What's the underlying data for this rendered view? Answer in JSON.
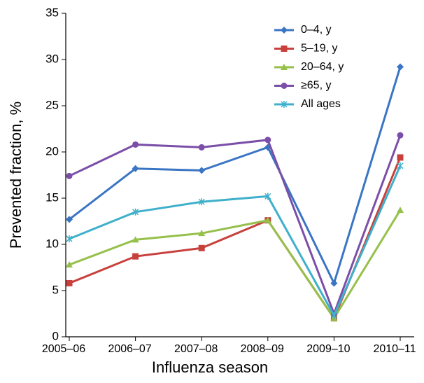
{
  "chart_data": {
    "type": "line",
    "x_label": "Influenza season",
    "y_label": "Prevented fraction, %",
    "categories": [
      "2005–06",
      "2006–07",
      "2007–08",
      "2008–09",
      "2009–10",
      "2010–11"
    ],
    "series": [
      {
        "name": "0–4, y",
        "color": "#3a75c4",
        "marker": "diamond",
        "values": [
          12.7,
          18.2,
          18.0,
          20.5,
          5.8,
          29.2
        ]
      },
      {
        "name": "5–19, y",
        "color": "#c8403c",
        "marker": "square",
        "values": [
          5.8,
          8.7,
          9.6,
          12.6,
          2.0,
          19.4
        ]
      },
      {
        "name": "20–64, y",
        "color": "#95c04a",
        "marker": "triangle",
        "values": [
          7.8,
          10.5,
          11.2,
          12.6,
          2.0,
          13.7
        ]
      },
      {
        "name": "≥65, y",
        "color": "#7b4fa8",
        "marker": "circle",
        "values": [
          17.4,
          20.8,
          20.5,
          21.3,
          2.5,
          21.8
        ]
      },
      {
        "name": "All ages",
        "color": "#3fb0cc",
        "marker": "star",
        "values": [
          10.6,
          13.5,
          14.6,
          15.2,
          2.3,
          18.5
        ]
      }
    ],
    "ylim": [
      0,
      35
    ],
    "yticks": [
      0,
      5,
      10,
      15,
      20,
      25,
      30,
      35
    ],
    "grid": false,
    "legend": "upper right"
  }
}
